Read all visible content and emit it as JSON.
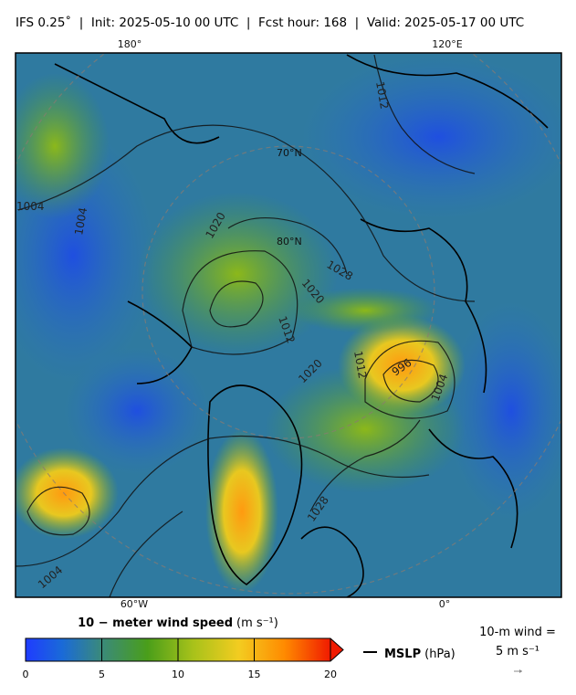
{
  "header": {
    "title": "IFS 0.25˚  |  Init: 2025-05-10 00 UTC  |  Fcst hour: 168  |  Valid: 2025-05-17 00 UTC"
  },
  "map": {
    "lon_labels": [
      "180°",
      "120°E",
      "60°W",
      "0°"
    ],
    "lat_labels": [
      "70°N",
      "80°N"
    ],
    "isobar_labels": [
      "1004",
      "1004",
      "1012",
      "1020",
      "1028",
      "1020",
      "1012",
      "1020",
      "1012",
      "996",
      "1004",
      "1028",
      "1004"
    ]
  },
  "colorbar": {
    "label": "10 − meter wind speed",
    "unit": "(m s⁻¹)",
    "range": [
      0,
      20
    ],
    "ticks": [
      0,
      5,
      10,
      15,
      20
    ]
  },
  "legend": {
    "mslp": "MSLP",
    "mslp_unit": "(hPa)",
    "wind_title": "10-m wind =",
    "wind_ref": "5 m s⁻¹"
  }
}
